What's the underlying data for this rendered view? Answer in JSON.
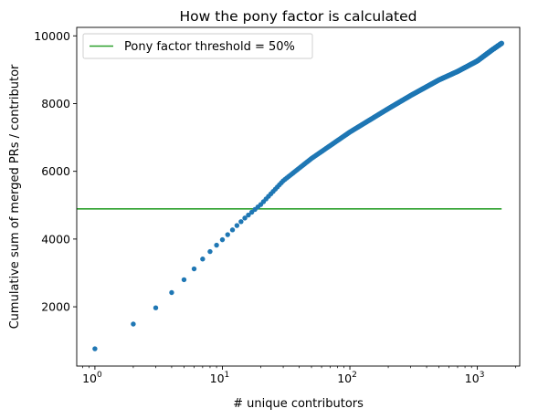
{
  "chart_data": {
    "type": "scatter",
    "title": "How the pony factor is calculated",
    "xlabel": "# unique contributors",
    "ylabel": "Cumulative sum of merged PRs / contributor",
    "xscale": "log",
    "xlim": [
      0.72,
      2150
    ],
    "ylim": [
      250,
      10250
    ],
    "x_ticks": [
      {
        "value": 1,
        "base": "10",
        "exp": "0"
      },
      {
        "value": 10,
        "base": "10",
        "exp": "1"
      },
      {
        "value": 100,
        "base": "10",
        "exp": "2"
      },
      {
        "value": 1000,
        "base": "10",
        "exp": "3"
      }
    ],
    "y_ticks": [
      {
        "value": 2000,
        "label": "2000"
      },
      {
        "value": 4000,
        "label": "4000"
      },
      {
        "value": 6000,
        "label": "6000"
      },
      {
        "value": 8000,
        "label": "8000"
      },
      {
        "value": 10000,
        "label": "10000"
      }
    ],
    "grid": false,
    "legend_position": "top-left",
    "colors": {
      "points": "#1f77b4",
      "threshold": "#2ca02c"
    },
    "series": [
      {
        "kind": "points",
        "curve": [
          [
            1,
            760
          ],
          [
            2,
            1490
          ],
          [
            3,
            1970
          ],
          [
            4,
            2420
          ],
          [
            5,
            2800
          ],
          [
            6,
            3120
          ],
          [
            7,
            3410
          ],
          [
            8,
            3630
          ],
          [
            9,
            3820
          ],
          [
            10,
            3980
          ],
          [
            11,
            4130
          ],
          [
            12,
            4270
          ],
          [
            13,
            4400
          ],
          [
            15,
            4620
          ],
          [
            20,
            5020
          ],
          [
            30,
            5720
          ],
          [
            50,
            6380
          ],
          [
            100,
            7160
          ],
          [
            200,
            7850
          ],
          [
            300,
            8240
          ],
          [
            500,
            8700
          ],
          [
            700,
            8950
          ],
          [
            1000,
            9260
          ],
          [
            1300,
            9580
          ],
          [
            1550,
            9780
          ]
        ],
        "count": 1550
      },
      {
        "kind": "hline",
        "name": "Pony factor threshold = 50%",
        "y": 4890,
        "x_range": [
          0.72,
          1550
        ]
      }
    ]
  }
}
